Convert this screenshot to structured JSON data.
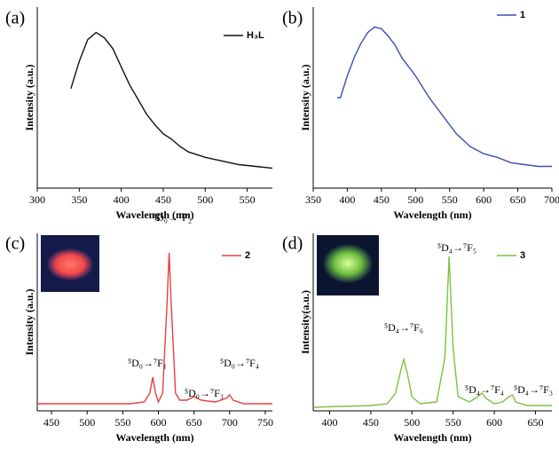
{
  "chart_data": [
    {
      "type": "line",
      "panel_label": "(a)",
      "xlabel": "Wavelength (nm)",
      "ylabel": "Intensity (a.u.)",
      "xlim": [
        300,
        580
      ],
      "xticks": [
        300,
        350,
        400,
        450,
        500,
        550
      ],
      "ylim": [
        0,
        100
      ],
      "x": [
        340,
        350,
        360,
        370,
        380,
        390,
        400,
        410,
        420,
        430,
        440,
        450,
        460,
        470,
        480,
        500,
        520,
        540,
        560,
        580
      ],
      "series": [
        {
          "name": "H₃L",
          "color": "#111111",
          "values": [
            55,
            70,
            82,
            86,
            83,
            77,
            67,
            57,
            49,
            41,
            35,
            30,
            27,
            23,
            20,
            17,
            15,
            13,
            12,
            11
          ]
        }
      ],
      "annotations": []
    },
    {
      "type": "line",
      "panel_label": "(b)",
      "xlabel": "Wavelength (nm)",
      "ylabel": "Intensity (a.u.)",
      "xlim": [
        350,
        700
      ],
      "xticks": [
        350,
        400,
        450,
        500,
        550,
        600,
        650,
        700
      ],
      "ylim": [
        0,
        100
      ],
      "x": [
        385,
        390,
        400,
        410,
        420,
        430,
        440,
        450,
        460,
        470,
        480,
        500,
        520,
        540,
        560,
        580,
        600,
        620,
        640,
        660,
        680,
        700
      ],
      "series": [
        {
          "name": "1",
          "color": "#3a4fb5",
          "values": [
            50,
            50,
            62,
            72,
            80,
            86,
            89,
            88,
            84,
            79,
            72,
            62,
            50,
            40,
            30,
            23,
            19,
            17,
            14,
            13,
            12,
            12
          ]
        }
      ],
      "annotations": []
    },
    {
      "type": "line",
      "panel_label": "(c)",
      "xlabel": "Wavelength (nm)",
      "ylabel": "Intensity (a.u.)",
      "xlim": [
        430,
        760
      ],
      "xticks": [
        450,
        500,
        550,
        600,
        650,
        700,
        750
      ],
      "ylim": [
        0,
        100
      ],
      "x": [
        430,
        500,
        560,
        580,
        588,
        592,
        596,
        600,
        606,
        612,
        615,
        618,
        624,
        630,
        640,
        650,
        660,
        680,
        695,
        700,
        705,
        720,
        760
      ],
      "series": [
        {
          "name": "2",
          "color": "#e5403f",
          "values": [
            4,
            4,
            4,
            5,
            10,
            19,
            10,
            5,
            10,
            60,
            89,
            60,
            10,
            6,
            6,
            8,
            6,
            5,
            7,
            9,
            6,
            4,
            4
          ]
        }
      ],
      "annotations": [
        "⁵D₀→⁷F₂",
        "⁵D₀→⁷F₁",
        "⁵D₀→⁷F₃",
        "⁵D₀→⁷F₄"
      ]
    },
    {
      "type": "line",
      "panel_label": "(d)",
      "xlabel": "Wavelength (nm)",
      "ylabel": "Intensity(a.u.)",
      "xlim": [
        380,
        670
      ],
      "xticks": [
        400,
        450,
        500,
        550,
        600,
        650
      ],
      "ylim": [
        0,
        100
      ],
      "x": [
        380,
        450,
        470,
        480,
        486,
        490,
        494,
        500,
        510,
        530,
        540,
        545,
        550,
        556,
        570,
        580,
        585,
        590,
        600,
        610,
        618,
        622,
        626,
        640,
        670
      ],
      "series": [
        {
          "name": "3",
          "color": "#7cc240",
          "values": [
            2,
            3,
            4,
            10,
            22,
            29,
            22,
            8,
            4,
            5,
            30,
            87,
            35,
            8,
            5,
            8,
            10,
            7,
            4,
            5,
            8,
            9,
            5,
            3,
            3
          ]
        }
      ],
      "annotations": [
        "⁵D₄→⁷F₅",
        "⁵D₄→⁷F₆",
        "⁵D₄→⁷F₄",
        "⁵D₄→⁷F₃"
      ]
    }
  ]
}
